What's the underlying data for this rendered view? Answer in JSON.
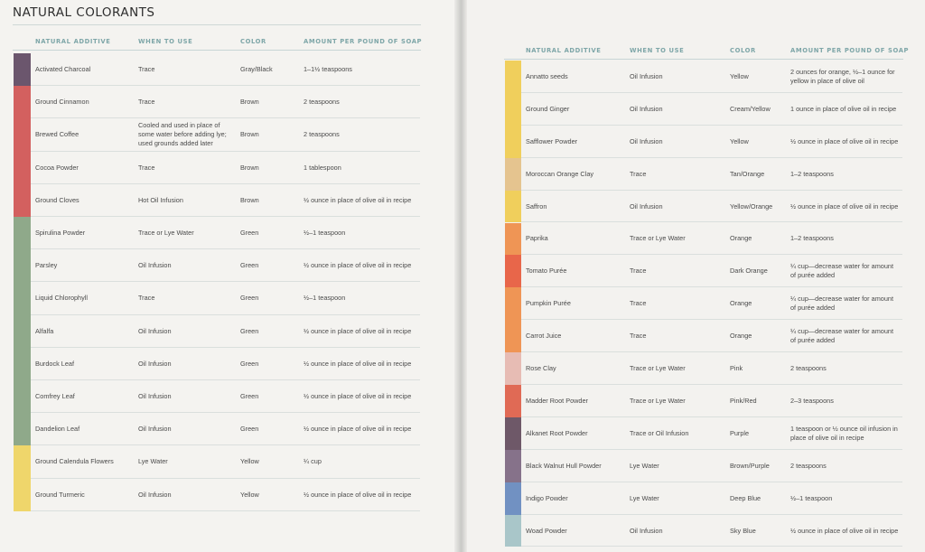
{
  "title": "NATURAL COLORANTS",
  "headers": {
    "additive": "NATURAL ADDITIVE",
    "when": "WHEN TO USE",
    "color": "COLOR",
    "amount": "AMOUNT PER POUND OF SOAP"
  },
  "left_rows": [
    {
      "swatch": "#6b566d",
      "additive": "Activated Charcoal",
      "when": "Trace",
      "color": "Gray/Black",
      "amount": "1–1½ teaspoons"
    },
    {
      "swatch": "#d3605f",
      "additive": "Ground Cinnamon",
      "when": "Trace",
      "color": "Brown",
      "amount": "2 teaspoons"
    },
    {
      "swatch": "#d3605f",
      "additive": "Brewed Coffee",
      "when": "Cooled and used in place of some water before adding lye; used grounds added later",
      "color": "Brown",
      "amount": "2 teaspoons"
    },
    {
      "swatch": "#d3605f",
      "additive": "Cocoa Powder",
      "when": "Trace",
      "color": "Brown",
      "amount": "1 tablespoon"
    },
    {
      "swatch": "#d3605f",
      "additive": "Ground Cloves",
      "when": "Hot Oil Infusion",
      "color": "Brown",
      "amount": "½ ounce in place of olive oil in recipe"
    },
    {
      "swatch": "#8fa98a",
      "additive": "Spirulina Powder",
      "when": "Trace or Lye Water",
      "color": "Green",
      "amount": "½–1 teaspoon"
    },
    {
      "swatch": "#8fa98a",
      "additive": "Parsley",
      "when": "Oil Infusion",
      "color": "Green",
      "amount": "½ ounce in place of olive oil in recipe"
    },
    {
      "swatch": "#8fa98a",
      "additive": "Liquid Chlorophyll",
      "when": "Trace",
      "color": "Green",
      "amount": "½–1 teaspoon"
    },
    {
      "swatch": "#8fa98a",
      "additive": "Alfalfa",
      "when": "Oil Infusion",
      "color": "Green",
      "amount": "½ ounce in place of olive oil in recipe"
    },
    {
      "swatch": "#8fa98a",
      "additive": "Burdock Leaf",
      "when": "Oil Infusion",
      "color": "Green",
      "amount": "½ ounce in place of olive oil in recipe"
    },
    {
      "swatch": "#8fa98a",
      "additive": "Comfrey Leaf",
      "when": "Oil Infusion",
      "color": "Green",
      "amount": "½ ounce in place of olive oil in recipe"
    },
    {
      "swatch": "#8fa98a",
      "additive": "Dandelion Leaf",
      "when": "Oil Infusion",
      "color": "Green",
      "amount": "½ ounce in place of olive oil in recipe"
    },
    {
      "swatch": "#efd66b",
      "additive": "Ground Calendula Flowers",
      "when": "Lye Water",
      "color": "Yellow",
      "amount": "¼ cup"
    },
    {
      "swatch": "#efd66b",
      "additive": "Ground Turmeric",
      "when": "Oil Infusion",
      "color": "Yellow",
      "amount": "½ ounce in place of olive oil in recipe"
    }
  ],
  "right_rows": [
    {
      "swatch": "#f0cf5c",
      "additive": "Annatto seeds",
      "when": "Oil Infusion",
      "color": "Yellow",
      "amount": "2 ounces for orange, ½–1 ounce for yellow in place of olive oil"
    },
    {
      "swatch": "#f0cf5c",
      "additive": "Ground Ginger",
      "when": "Oil Infusion",
      "color": "Cream/Yellow",
      "amount": "1 ounce in place of olive oil in recipe"
    },
    {
      "swatch": "#f0cf5c",
      "additive": "Safflower Powder",
      "when": "Oil Infusion",
      "color": "Yellow",
      "amount": "½ ounce in place of olive oil in recipe"
    },
    {
      "swatch": "#e5c48f",
      "additive": "Moroccan Orange Clay",
      "when": "Trace",
      "color": "Tan/Orange",
      "amount": "1–2 teaspoons"
    },
    {
      "swatch": "#f0cf5c",
      "additive": "Saffron",
      "when": "Oil Infusion",
      "color": "Yellow/Orange",
      "amount": "½ ounce in place of olive oil in recipe"
    },
    {
      "swatch": "#ef9555",
      "additive": "Paprika",
      "when": "Trace or Lye Water",
      "color": "Orange",
      "amount": "1–2 teaspoons"
    },
    {
      "swatch": "#e8664a",
      "additive": "Tomato Purée",
      "when": "Trace",
      "color": "Dark Orange",
      "amount": "¼ cup—decrease water for amount of purée added"
    },
    {
      "swatch": "#ef9555",
      "additive": "Pumpkin Purée",
      "when": "Trace",
      "color": "Orange",
      "amount": "¼ cup—decrease water for amount of purée added"
    },
    {
      "swatch": "#ef9555",
      "additive": "Carrot Juice",
      "when": "Trace",
      "color": "Orange",
      "amount": "¼ cup—decrease water for amount of purée added"
    },
    {
      "swatch": "#e7bcb4",
      "additive": "Rose Clay",
      "when": "Trace or Lye Water",
      "color": "Pink",
      "amount": "2 teaspoons"
    },
    {
      "swatch": "#e06a55",
      "additive": "Madder Root Powder",
      "when": "Trace or Lye Water",
      "color": "Pink/Red",
      "amount": "2–3 teaspoons"
    },
    {
      "swatch": "#6e5868",
      "additive": "Alkanet Root Powder",
      "when": "Trace or Oil Infusion",
      "color": "Purple",
      "amount": "1 teaspoon or ½ ounce oil infusion in place of olive oil in recipe"
    },
    {
      "swatch": "#86728a",
      "additive": "Black Walnut Hull Powder",
      "when": "Lye Water",
      "color": "Brown/Purple",
      "amount": "2 teaspoons"
    },
    {
      "swatch": "#7191c2",
      "additive": "Indigo Powder",
      "when": "Lye Water",
      "color": "Deep Blue",
      "amount": "½–1 teaspoon"
    },
    {
      "swatch": "#a9c6c9",
      "additive": "Woad Powder",
      "when": "Oil Infusion",
      "color": "Sky Blue",
      "amount": "½ ounce in place of olive oil in recipe"
    }
  ]
}
